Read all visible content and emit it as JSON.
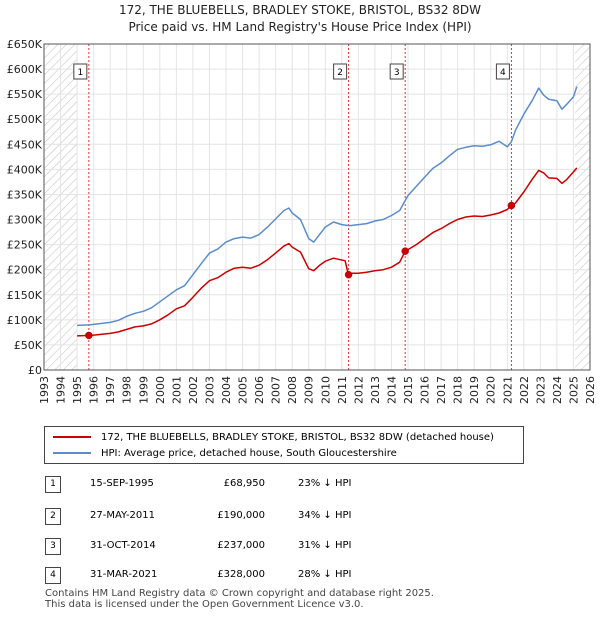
{
  "title_line1": "172, THE BLUEBELLS, BRADLEY STOKE, BRISTOL, BS32 8DW",
  "title_line2": "Price paid vs. HM Land Registry's House Price Index (HPI)",
  "chart_data": {
    "type": "line",
    "title": "172, THE BLUEBELLS, BRADLEY STOKE, BRISTOL, BS32 8DW — Price paid vs. HM Land Registry's House Price Index (HPI)",
    "xlim": [
      1993,
      2026
    ],
    "ylim": [
      0,
      650000
    ],
    "x_ticks": [
      1993,
      1994,
      1995,
      1996,
      1997,
      1998,
      1999,
      2000,
      2001,
      2002,
      2003,
      2004,
      2005,
      2006,
      2007,
      2008,
      2009,
      2010,
      2011,
      2012,
      2013,
      2014,
      2015,
      2016,
      2017,
      2018,
      2019,
      2020,
      2021,
      2022,
      2023,
      2024,
      2025,
      2026
    ],
    "y_ticks": [
      {
        "value": 0,
        "label": "£0"
      },
      {
        "value": 50000,
        "label": "£50K"
      },
      {
        "value": 100000,
        "label": "£100K"
      },
      {
        "value": 150000,
        "label": "£150K"
      },
      {
        "value": 200000,
        "label": "£200K"
      },
      {
        "value": 250000,
        "label": "£250K"
      },
      {
        "value": 300000,
        "label": "£300K"
      },
      {
        "value": 350000,
        "label": "£350K"
      },
      {
        "value": 400000,
        "label": "£400K"
      },
      {
        "value": 450000,
        "label": "£450K"
      },
      {
        "value": 500000,
        "label": "£500K"
      },
      {
        "value": 550000,
        "label": "£550K"
      },
      {
        "value": 600000,
        "label": "£600K"
      },
      {
        "value": 650000,
        "label": "£650K"
      }
    ],
    "hatch_before": 1995.0,
    "hatch_after": 2025.1,
    "series": [
      {
        "name": "172, THE BLUEBELLS, BRADLEY STOKE, BRISTOL, BS32 8DW (detached house)",
        "color": "#cc0000",
        "points": [
          [
            1995.0,
            68000
          ],
          [
            1995.71,
            68950
          ],
          [
            1996.0,
            69500
          ],
          [
            1997.0,
            73000
          ],
          [
            1997.5,
            76000
          ],
          [
            1998.0,
            81000
          ],
          [
            1998.5,
            86000
          ],
          [
            1999.0,
            88000
          ],
          [
            1999.5,
            92000
          ],
          [
            2000.0,
            100000
          ],
          [
            2000.5,
            110000
          ],
          [
            2001.0,
            122000
          ],
          [
            2001.5,
            128000
          ],
          [
            2002.0,
            145000
          ],
          [
            2002.5,
            163000
          ],
          [
            2003.0,
            178000
          ],
          [
            2003.5,
            184000
          ],
          [
            2004.0,
            195000
          ],
          [
            2004.5,
            203000
          ],
          [
            2005.0,
            205000
          ],
          [
            2005.5,
            203000
          ],
          [
            2006.0,
            209000
          ],
          [
            2006.5,
            220000
          ],
          [
            2007.0,
            233000
          ],
          [
            2007.5,
            247000
          ],
          [
            2007.8,
            252000
          ],
          [
            2008.0,
            245000
          ],
          [
            2008.5,
            235000
          ],
          [
            2009.0,
            202000
          ],
          [
            2009.3,
            198000
          ],
          [
            2009.7,
            210000
          ],
          [
            2010.0,
            217000
          ],
          [
            2010.5,
            223000
          ],
          [
            2010.9,
            220000
          ],
          [
            2011.2,
            218000
          ],
          [
            2011.4,
            190000
          ],
          [
            2011.5,
            193000
          ],
          [
            2012.0,
            193000
          ],
          [
            2012.5,
            195000
          ],
          [
            2013.0,
            198000
          ],
          [
            2013.5,
            200000
          ],
          [
            2014.0,
            205000
          ],
          [
            2014.5,
            215000
          ],
          [
            2014.83,
            237000
          ],
          [
            2015.0,
            240000
          ],
          [
            2015.5,
            250000
          ],
          [
            2016.0,
            262000
          ],
          [
            2016.5,
            274000
          ],
          [
            2017.0,
            282000
          ],
          [
            2017.5,
            292000
          ],
          [
            2018.0,
            300000
          ],
          [
            2018.5,
            305000
          ],
          [
            2019.0,
            307000
          ],
          [
            2019.5,
            306000
          ],
          [
            2020.0,
            309000
          ],
          [
            2020.5,
            313000
          ],
          [
            2021.0,
            320000
          ],
          [
            2021.25,
            328000
          ],
          [
            2021.5,
            333000
          ],
          [
            2022.0,
            355000
          ],
          [
            2022.5,
            380000
          ],
          [
            2022.9,
            398000
          ],
          [
            2023.2,
            393000
          ],
          [
            2023.5,
            383000
          ],
          [
            2024.0,
            382000
          ],
          [
            2024.3,
            372000
          ],
          [
            2024.6,
            380000
          ],
          [
            2025.0,
            395000
          ],
          [
            2025.2,
            403000
          ]
        ]
      },
      {
        "name": "HPI: Average price, detached house, South Gloucestershire",
        "color": "#5b8ccc",
        "points": [
          [
            1995.0,
            89000
          ],
          [
            1995.71,
            90000
          ],
          [
            1996.0,
            91000
          ],
          [
            1997.0,
            95000
          ],
          [
            1997.5,
            99000
          ],
          [
            1998.0,
            107000
          ],
          [
            1998.5,
            113000
          ],
          [
            1999.0,
            117000
          ],
          [
            1999.5,
            124000
          ],
          [
            2000.0,
            136000
          ],
          [
            2000.5,
            148000
          ],
          [
            2001.0,
            160000
          ],
          [
            2001.5,
            168000
          ],
          [
            2002.0,
            190000
          ],
          [
            2002.5,
            212000
          ],
          [
            2003.0,
            233000
          ],
          [
            2003.5,
            241000
          ],
          [
            2004.0,
            255000
          ],
          [
            2004.5,
            262000
          ],
          [
            2005.0,
            265000
          ],
          [
            2005.5,
            263000
          ],
          [
            2006.0,
            270000
          ],
          [
            2006.5,
            285000
          ],
          [
            2007.0,
            301000
          ],
          [
            2007.5,
            318000
          ],
          [
            2007.8,
            323000
          ],
          [
            2008.0,
            313000
          ],
          [
            2008.5,
            300000
          ],
          [
            2009.0,
            262000
          ],
          [
            2009.3,
            255000
          ],
          [
            2009.7,
            272000
          ],
          [
            2010.0,
            285000
          ],
          [
            2010.5,
            295000
          ],
          [
            2011.0,
            290000
          ],
          [
            2011.41,
            288000
          ],
          [
            2011.5,
            288000
          ],
          [
            2012.0,
            290000
          ],
          [
            2012.5,
            292000
          ],
          [
            2013.0,
            297000
          ],
          [
            2013.5,
            300000
          ],
          [
            2014.0,
            308000
          ],
          [
            2014.5,
            318000
          ],
          [
            2014.83,
            338000
          ],
          [
            2015.0,
            348000
          ],
          [
            2015.5,
            366000
          ],
          [
            2016.0,
            384000
          ],
          [
            2016.5,
            402000
          ],
          [
            2017.0,
            413000
          ],
          [
            2017.5,
            427000
          ],
          [
            2018.0,
            440000
          ],
          [
            2018.5,
            444000
          ],
          [
            2019.0,
            447000
          ],
          [
            2019.5,
            446000
          ],
          [
            2020.0,
            449000
          ],
          [
            2020.5,
            456000
          ],
          [
            2021.0,
            445000
          ],
          [
            2021.25,
            455000
          ],
          [
            2021.5,
            478000
          ],
          [
            2022.0,
            510000
          ],
          [
            2022.5,
            537000
          ],
          [
            2022.9,
            562000
          ],
          [
            2023.2,
            548000
          ],
          [
            2023.5,
            540000
          ],
          [
            2024.0,
            537000
          ],
          [
            2024.3,
            520000
          ],
          [
            2024.6,
            530000
          ],
          [
            2025.0,
            545000
          ],
          [
            2025.2,
            565000
          ]
        ]
      }
    ],
    "sales": [
      {
        "label": "1",
        "x": 1995.71,
        "y": 68950
      },
      {
        "label": "2",
        "x": 2011.41,
        "y": 190000
      },
      {
        "label": "3",
        "x": 2014.83,
        "y": 237000
      },
      {
        "label": "4",
        "x": 2021.25,
        "y": 328000
      }
    ]
  },
  "legend": {
    "series1": "172, THE BLUEBELLS, BRADLEY STOKE, BRISTOL, BS32 8DW (detached house)",
    "series2": "HPI: Average price, detached house, South Gloucestershire",
    "color1": "#cc0000",
    "color2": "#5b8ccc"
  },
  "transactions": [
    {
      "num": "1",
      "date": "15-SEP-1995",
      "price": "£68,950",
      "hpi": "23% ↓ HPI"
    },
    {
      "num": "2",
      "date": "27-MAY-2011",
      "price": "£190,000",
      "hpi": "34% ↓ HPI"
    },
    {
      "num": "3",
      "date": "31-OCT-2014",
      "price": "£237,000",
      "hpi": "31% ↓ HPI"
    },
    {
      "num": "4",
      "date": "31-MAR-2021",
      "price": "£328,000",
      "hpi": "28% ↓ HPI"
    }
  ],
  "footer_line1": "Contains HM Land Registry data © Crown copyright and database right 2025.",
  "footer_line2": "This data is licensed under the Open Government Licence v3.0."
}
